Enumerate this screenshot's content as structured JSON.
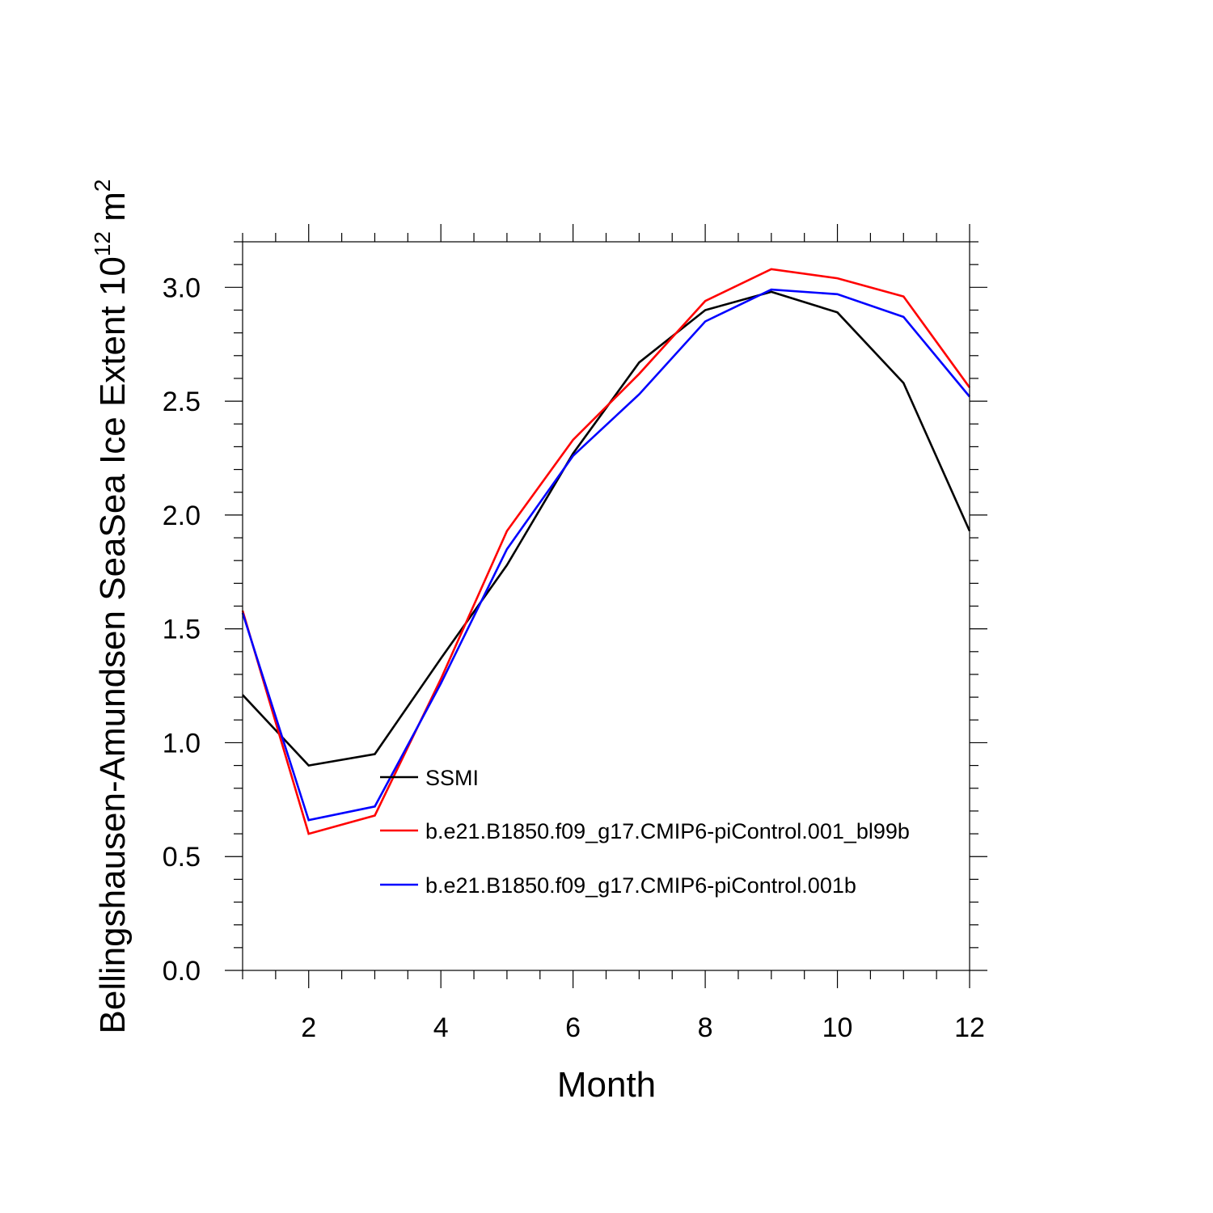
{
  "chart_data": {
    "type": "line",
    "title": "",
    "xlabel": "Month",
    "ylabel_main": "Bellingshausen-Amundsen SeaSea Ice Extent 10",
    "ylabel_exp": "12",
    "ylabel_unit": " m",
    "ylabel_unit_exp": "2",
    "xlim": [
      1,
      12
    ],
    "ylim": [
      0,
      3.2
    ],
    "xticks": [
      2,
      4,
      6,
      8,
      10,
      12
    ],
    "xtick_labels": [
      "2",
      "4",
      "6",
      "8",
      "10",
      "12"
    ],
    "yticks": [
      0,
      0.5,
      1,
      1.5,
      2,
      2.5,
      3
    ],
    "ytick_labels": [
      "0.0",
      "0.5",
      "1.0",
      "1.5",
      "2.0",
      "2.5",
      "3.0"
    ],
    "x": [
      1,
      2,
      3,
      4,
      5,
      6,
      7,
      8,
      9,
      10,
      11,
      12
    ],
    "series": [
      {
        "name": "SSMI",
        "color": "#000000",
        "values": [
          1.21,
          0.9,
          0.95,
          1.37,
          1.78,
          2.27,
          2.67,
          2.9,
          2.98,
          2.89,
          2.58,
          1.93
        ]
      },
      {
        "name": "b.e21.B1850.f09_g17.CMIP6-piControl.001_bl99b",
        "color": "#ff0000",
        "values": [
          1.58,
          0.6,
          0.68,
          1.28,
          1.93,
          2.33,
          2.62,
          2.94,
          3.08,
          3.04,
          2.96,
          2.56
        ]
      },
      {
        "name": "b.e21.B1850.f09_g17.CMIP6-piControl.001b",
        "color": "#0000ff",
        "values": [
          1.57,
          0.66,
          0.72,
          1.26,
          1.85,
          2.26,
          2.53,
          2.85,
          2.99,
          2.97,
          2.87,
          2.52
        ]
      }
    ],
    "legend_position": "inside-bottom-center",
    "grid": false
  }
}
